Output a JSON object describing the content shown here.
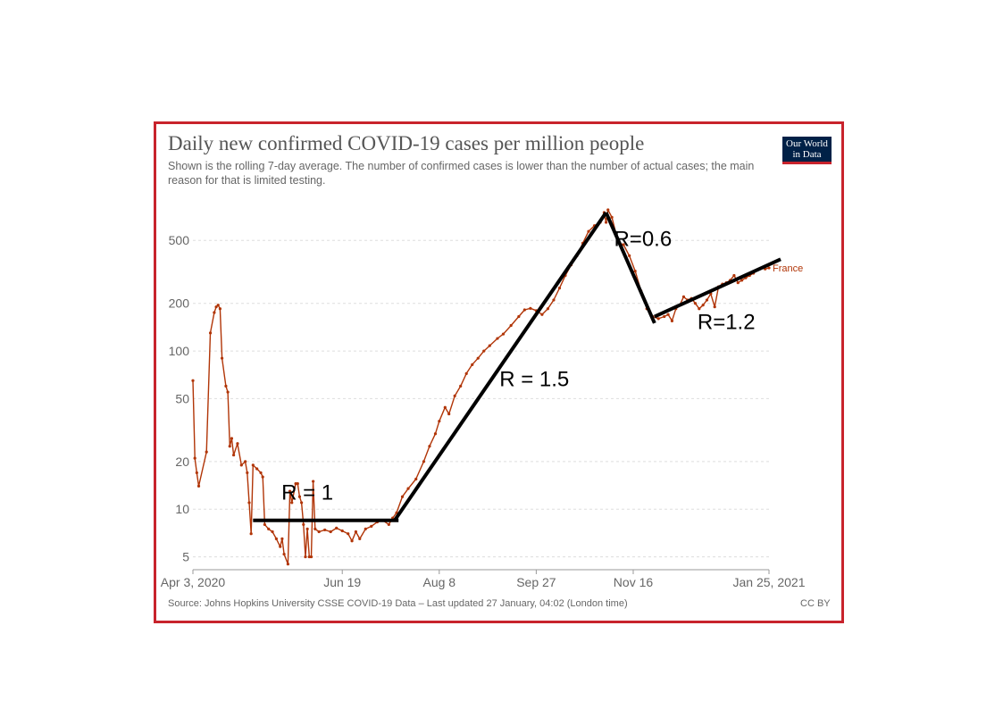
{
  "header": {
    "title": "Daily new confirmed COVID-19 cases per million people",
    "subtitle": "Shown is the rolling 7-day average. The number of confirmed cases is lower than the number of actual cases; the main reason for that is limited testing."
  },
  "logo": {
    "line1": "Our World",
    "line2": "in Data"
  },
  "footer": {
    "source": "Source: Johns Hopkins University CSSE COVID-19 Data – Last updated 27 January, 04:02 (London time)",
    "license": "CC BY"
  },
  "colors": {
    "series": "#b13507",
    "frame": "#c8232c",
    "grid": "#dddddd",
    "fit_lines": "#000000"
  },
  "chart_data": {
    "type": "line",
    "title": "Daily new confirmed COVID-19 cases per million people",
    "yscale": "log",
    "ylim": [
      4.2,
      900
    ],
    "xlim": [
      "2020-04-03",
      "2021-01-25"
    ],
    "grid": true,
    "y_ticks": [
      5,
      10,
      20,
      50,
      100,
      200,
      500
    ],
    "x_ticks": [
      {
        "date": "2020-04-03",
        "label": "Apr 3, 2020"
      },
      {
        "date": "2020-06-19",
        "label": "Jun 19"
      },
      {
        "date": "2020-08-08",
        "label": "Aug 8"
      },
      {
        "date": "2020-09-27",
        "label": "Sep 27"
      },
      {
        "date": "2020-11-16",
        "label": "Nov 16"
      },
      {
        "date": "2021-01-25",
        "label": "Jan 25, 2021"
      }
    ],
    "series": [
      {
        "name": "France",
        "points": [
          [
            "2020-04-03",
            65
          ],
          [
            "2020-04-04",
            21
          ],
          [
            "2020-04-05",
            17
          ],
          [
            "2020-04-06",
            14
          ],
          [
            "2020-04-10",
            23
          ],
          [
            "2020-04-12",
            130
          ],
          [
            "2020-04-14",
            175
          ],
          [
            "2020-04-15",
            190
          ],
          [
            "2020-04-16",
            195
          ],
          [
            "2020-04-17",
            185
          ],
          [
            "2020-04-18",
            90
          ],
          [
            "2020-04-20",
            60
          ],
          [
            "2020-04-21",
            55
          ],
          [
            "2020-04-22",
            25
          ],
          [
            "2020-04-23",
            28
          ],
          [
            "2020-04-24",
            22
          ],
          [
            "2020-04-26",
            26
          ],
          [
            "2020-04-28",
            19
          ],
          [
            "2020-04-30",
            20
          ],
          [
            "2020-05-01",
            17
          ],
          [
            "2020-05-02",
            11
          ],
          [
            "2020-05-03",
            7
          ],
          [
            "2020-05-04",
            19
          ],
          [
            "2020-05-06",
            18
          ],
          [
            "2020-05-08",
            17
          ],
          [
            "2020-05-09",
            16
          ],
          [
            "2020-05-10",
            8
          ],
          [
            "2020-05-12",
            7.5
          ],
          [
            "2020-05-14",
            7.2
          ],
          [
            "2020-05-16",
            6.5
          ],
          [
            "2020-05-18",
            5.8
          ],
          [
            "2020-05-19",
            6.5
          ],
          [
            "2020-05-20",
            5.2
          ],
          [
            "2020-05-22",
            4.5
          ],
          [
            "2020-05-23",
            13
          ],
          [
            "2020-05-24",
            11
          ],
          [
            "2020-05-26",
            14.5
          ],
          [
            "2020-05-27",
            14.5
          ],
          [
            "2020-05-28",
            12
          ],
          [
            "2020-05-29",
            11
          ],
          [
            "2020-05-30",
            8
          ],
          [
            "2020-05-31",
            5
          ],
          [
            "2020-06-01",
            7.5
          ],
          [
            "2020-06-02",
            5
          ],
          [
            "2020-06-03",
            5
          ],
          [
            "2020-06-04",
            15
          ],
          [
            "2020-06-05",
            7.5
          ],
          [
            "2020-06-07",
            7.2
          ],
          [
            "2020-06-10",
            7.4
          ],
          [
            "2020-06-13",
            7.2
          ],
          [
            "2020-06-16",
            7.6
          ],
          [
            "2020-06-19",
            7.3
          ],
          [
            "2020-06-22",
            7.0
          ],
          [
            "2020-06-24",
            6.3
          ],
          [
            "2020-06-26",
            7.2
          ],
          [
            "2020-06-28",
            6.5
          ],
          [
            "2020-07-01",
            7.5
          ],
          [
            "2020-07-04",
            7.8
          ],
          [
            "2020-07-07",
            8.3
          ],
          [
            "2020-07-10",
            8.5
          ],
          [
            "2020-07-13",
            8.0
          ],
          [
            "2020-07-15",
            8.8
          ],
          [
            "2020-07-17",
            9.5
          ],
          [
            "2020-07-20",
            12
          ],
          [
            "2020-07-23",
            13.5
          ],
          [
            "2020-07-27",
            15.5
          ],
          [
            "2020-07-31",
            20
          ],
          [
            "2020-08-03",
            25
          ],
          [
            "2020-08-06",
            30
          ],
          [
            "2020-08-08",
            36
          ],
          [
            "2020-08-11",
            44
          ],
          [
            "2020-08-13",
            40
          ],
          [
            "2020-08-16",
            52
          ],
          [
            "2020-08-19",
            60
          ],
          [
            "2020-08-22",
            72
          ],
          [
            "2020-08-25",
            82
          ],
          [
            "2020-08-28",
            90
          ],
          [
            "2020-08-31",
            100
          ],
          [
            "2020-09-03",
            108
          ],
          [
            "2020-09-07",
            120
          ],
          [
            "2020-09-10",
            128
          ],
          [
            "2020-09-14",
            145
          ],
          [
            "2020-09-18",
            165
          ],
          [
            "2020-09-21",
            182
          ],
          [
            "2020-09-24",
            186
          ],
          [
            "2020-09-27",
            180
          ],
          [
            "2020-09-30",
            170
          ],
          [
            "2020-10-03",
            185
          ],
          [
            "2020-10-06",
            210
          ],
          [
            "2020-10-09",
            250
          ],
          [
            "2020-10-12",
            300
          ],
          [
            "2020-10-15",
            350
          ],
          [
            "2020-10-18",
            400
          ],
          [
            "2020-10-21",
            480
          ],
          [
            "2020-10-24",
            570
          ],
          [
            "2020-10-27",
            620
          ],
          [
            "2020-10-30",
            650
          ],
          [
            "2020-11-01",
            750
          ],
          [
            "2020-11-02",
            650
          ],
          [
            "2020-11-03",
            780
          ],
          [
            "2020-11-05",
            700
          ],
          [
            "2020-11-07",
            560
          ],
          [
            "2020-11-09",
            480
          ],
          [
            "2020-11-11",
            470
          ],
          [
            "2020-11-14",
            400
          ],
          [
            "2020-11-17",
            320
          ],
          [
            "2020-11-20",
            240
          ],
          [
            "2020-11-23",
            185
          ],
          [
            "2020-11-26",
            165
          ],
          [
            "2020-11-29",
            160
          ],
          [
            "2020-12-02",
            165
          ],
          [
            "2020-12-04",
            170
          ],
          [
            "2020-12-06",
            155
          ],
          [
            "2020-12-08",
            185
          ],
          [
            "2020-12-10",
            195
          ],
          [
            "2020-12-12",
            220
          ],
          [
            "2020-12-14",
            210
          ],
          [
            "2020-12-16",
            215
          ],
          [
            "2020-12-18",
            200
          ],
          [
            "2020-12-20",
            185
          ],
          [
            "2020-12-22",
            195
          ],
          [
            "2020-12-24",
            210
          ],
          [
            "2020-12-26",
            230
          ],
          [
            "2020-12-28",
            190
          ],
          [
            "2020-12-30",
            255
          ],
          [
            "2021-01-01",
            265
          ],
          [
            "2021-01-03",
            270
          ],
          [
            "2021-01-05",
            280
          ],
          [
            "2021-01-07",
            300
          ],
          [
            "2021-01-09",
            270
          ],
          [
            "2021-01-11",
            280
          ],
          [
            "2021-01-13",
            290
          ],
          [
            "2021-01-15",
            300
          ],
          [
            "2021-01-17",
            310
          ],
          [
            "2021-01-19",
            325
          ],
          [
            "2021-01-21",
            335
          ],
          [
            "2021-01-23",
            330
          ],
          [
            "2021-01-25",
            335
          ]
        ]
      }
    ],
    "fit_lines": [
      {
        "label": "R = 1",
        "start": [
          "2020-05-04",
          8.5
        ],
        "end": [
          "2020-07-18",
          8.5
        ]
      },
      {
        "label": "R = 1.5",
        "start": [
          "2020-07-16",
          8.5
        ],
        "end": [
          "2020-11-02",
          750
        ]
      },
      {
        "label": "R=0.6",
        "start": [
          "2020-11-02",
          750
        ],
        "end": [
          "2020-11-27",
          150
        ]
      },
      {
        "label": "R=1.2",
        "start": [
          "2020-11-27",
          165
        ],
        "end": [
          "2021-01-31",
          380
        ]
      }
    ],
    "annotations": [
      {
        "text": "R = 1",
        "at": [
          "2020-06-01",
          11.5
        ]
      },
      {
        "text": "R = 1.5",
        "at": [
          "2020-09-26",
          60
        ]
      },
      {
        "text": "R=0.6",
        "at": [
          "2020-11-21",
          460
        ]
      },
      {
        "text": "R=1.2",
        "at": [
          "2021-01-03",
          138
        ]
      }
    ]
  }
}
